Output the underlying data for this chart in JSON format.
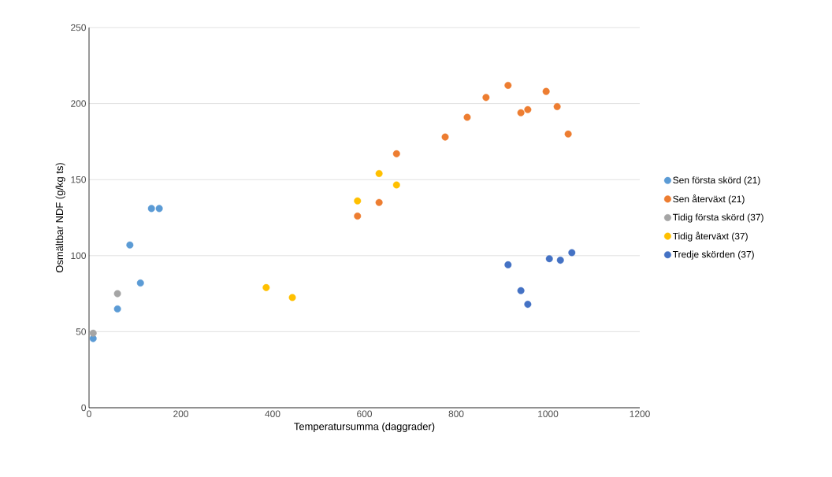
{
  "chart_data": {
    "type": "scatter",
    "xlabel": "Temperatursumma (daggrader)",
    "ylabel": "Osmältbar NDF (g/kg ts)",
    "xlim": [
      0,
      1200
    ],
    "xticks": [
      0,
      200,
      400,
      600,
      800,
      1000,
      1200
    ],
    "ylim": [
      0,
      250
    ],
    "yticks": [
      0,
      50,
      100,
      150,
      200,
      250
    ],
    "grid": "y",
    "legend": "right",
    "marker": "circle",
    "series": [
      {
        "name": "Sen första skörd (21)",
        "color": "#5b9bd5",
        "x": [
          9,
          62,
          89,
          112,
          136,
          153
        ],
        "values": [
          45.5,
          65,
          107,
          82,
          131,
          131
        ]
      },
      {
        "name": "Sen återväxt (21)",
        "color": "#ed7d31",
        "x": [
          585,
          632,
          670,
          776,
          824,
          865,
          913,
          941,
          956,
          996,
          1020,
          1044
        ],
        "values": [
          126,
          135,
          167,
          178,
          191,
          204,
          212,
          194,
          196,
          208,
          198,
          180
        ]
      },
      {
        "name": "Tidig första skörd (37)",
        "color": "#a5a5a5",
        "x": [
          9,
          62
        ],
        "values": [
          49,
          75
        ]
      },
      {
        "name": "Tidig återväxt (37)",
        "color": "#ffc000",
        "x": [
          386,
          443,
          585,
          632,
          670
        ],
        "values": [
          79,
          72.5,
          136,
          154,
          146.5
        ]
      },
      {
        "name": "Tredje skörden (37)",
        "color": "#4472c4",
        "x": [
          913,
          941,
          956,
          1003,
          1027,
          1052
        ],
        "values": [
          94,
          77,
          68,
          98,
          97,
          102
        ]
      }
    ]
  }
}
